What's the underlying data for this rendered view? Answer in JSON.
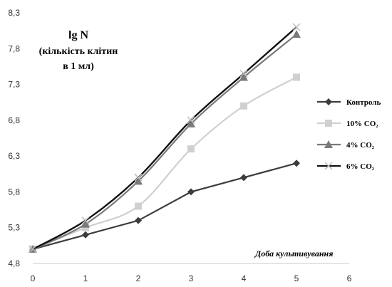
{
  "chart_data": {
    "type": "line",
    "ylabel_lines": [
      "lg N",
      "(кількість клітин",
      "в 1 мл)"
    ],
    "xlabel": "Доба культивування",
    "x": [
      0,
      1,
      2,
      3,
      4,
      5
    ],
    "xlim": [
      0,
      6
    ],
    "ylim": [
      4.8,
      8.3
    ],
    "x_ticks": [
      "0",
      "1",
      "2",
      "3",
      "4",
      "5",
      "6"
    ],
    "y_ticks": [
      "4,8",
      "5,3",
      "5,8",
      "6,3",
      "6,8",
      "7,3",
      "7,8",
      "8,3"
    ],
    "y_tick_values": [
      4.8,
      5.3,
      5.8,
      6.3,
      6.8,
      7.3,
      7.8,
      8.3
    ],
    "grid": false,
    "legend_position": "right",
    "series": [
      {
        "name": "Контроль",
        "values": [
          5.0,
          5.2,
          5.4,
          5.8,
          6.0,
          6.2
        ],
        "color": "#3c3c3c",
        "marker": "diamond"
      },
      {
        "name": "10% CO₂",
        "values": [
          5.0,
          5.3,
          5.6,
          6.4,
          7.0,
          7.4
        ],
        "color": "#d0d0d0",
        "marker": "square"
      },
      {
        "name": "4% CO₂",
        "values": [
          5.0,
          5.35,
          5.95,
          6.75,
          7.4,
          8.0
        ],
        "color": "#7a7a7a",
        "marker": "triangle"
      },
      {
        "name": "6% CO₂",
        "values": [
          5.0,
          5.4,
          6.0,
          6.8,
          7.45,
          8.1
        ],
        "color": "#111111",
        "marker": "x"
      }
    ]
  }
}
